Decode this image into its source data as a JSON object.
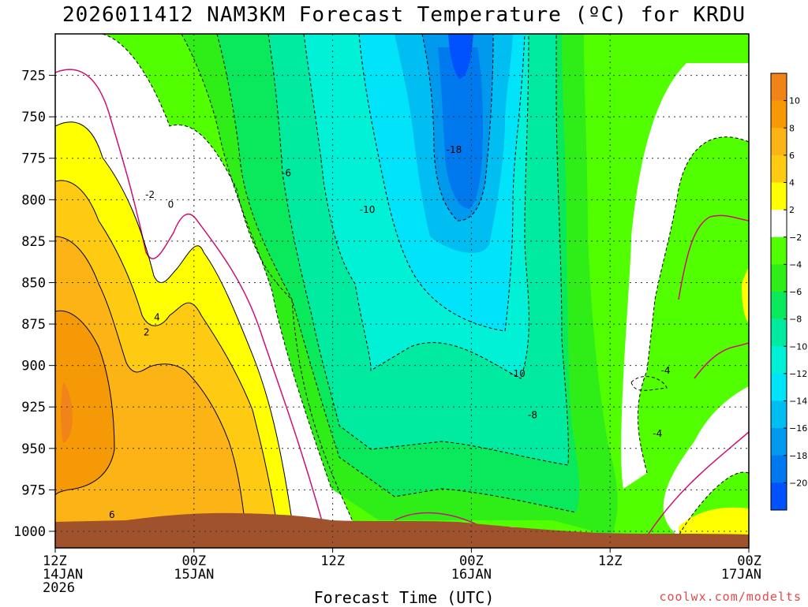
{
  "page": {
    "title": "2026011412 NAM3KM Forecast Temperature (ºC) for KRDU",
    "credit": "coolwx.com/modelts"
  },
  "chart_data": {
    "type": "heatmap",
    "title": "2026011412 NAM3KM Forecast Temperature (ºC) for KRDU",
    "xlabel": "Forecast Time (UTC)",
    "ylabel": "",
    "x_ticks": [
      {
        "hour": 0,
        "lines": [
          "12Z",
          "14JAN",
          "2026"
        ]
      },
      {
        "hour": 12,
        "lines": [
          "00Z",
          "15JAN"
        ]
      },
      {
        "hour": 24,
        "lines": [
          "12Z"
        ]
      },
      {
        "hour": 36,
        "lines": [
          "00Z",
          "16JAN"
        ]
      },
      {
        "hour": 48,
        "lines": [
          "12Z"
        ]
      },
      {
        "hour": 60,
        "lines": [
          "00Z",
          "17JAN"
        ]
      }
    ],
    "xlim": [
      0,
      60
    ],
    "y_ticks": [
      725,
      750,
      775,
      800,
      825,
      850,
      875,
      900,
      925,
      950,
      975,
      1000
    ],
    "ylim": [
      700,
      1010
    ],
    "y_reversed": true,
    "grid": true,
    "colorbar": {
      "placement": "right",
      "ticks": [
        10,
        8,
        6,
        4,
        2,
        -2,
        -4,
        -6,
        -8,
        -10,
        -12,
        -14,
        -16,
        -18,
        -20
      ],
      "bins": [
        {
          "range": [
            10,
            12
          ],
          "color": "#f08418"
        },
        {
          "range": [
            8,
            10
          ],
          "color": "#f59a06"
        },
        {
          "range": [
            6,
            8
          ],
          "color": "#fbb316"
        },
        {
          "range": [
            4,
            6
          ],
          "color": "#ffcb12"
        },
        {
          "range": [
            2,
            4
          ],
          "color": "#ffff00"
        },
        {
          "range": [
            -2,
            2
          ],
          "color": "#ffffff"
        },
        {
          "range": [
            -4,
            -2
          ],
          "color": "#52ff00"
        },
        {
          "range": [
            -6,
            -4
          ],
          "color": "#2fee17"
        },
        {
          "range": [
            -8,
            -6
          ],
          "color": "#0ae95c"
        },
        {
          "range": [
            -10,
            -8
          ],
          "color": "#00eaa0"
        },
        {
          "range": [
            -12,
            -10
          ],
          "color": "#00f1d6"
        },
        {
          "range": [
            -14,
            -12
          ],
          "color": "#00e3f8"
        },
        {
          "range": [
            -16,
            -14
          ],
          "color": "#00bdf2"
        },
        {
          "range": [
            -18,
            -16
          ],
          "color": "#0099ee"
        },
        {
          "range": [
            -20,
            -18
          ],
          "color": "#0079ee"
        },
        {
          "range": [
            -22,
            -20
          ],
          "color": "#0052ff"
        }
      ]
    },
    "contour_labels": [
      {
        "text": "-2",
        "hour": 8.2,
        "p": 797
      },
      {
        "text": "0",
        "hour": 10.0,
        "p": 803
      },
      {
        "text": "-6",
        "hour": 20.0,
        "p": 784
      },
      {
        "text": "-10",
        "hour": 27.0,
        "p": 806
      },
      {
        "text": "-18",
        "hour": 34.5,
        "p": 770
      },
      {
        "text": "2",
        "hour": 7.9,
        "p": 880
      },
      {
        "text": "4",
        "hour": 8.8,
        "p": 871
      },
      {
        "text": "6",
        "hour": 4.9,
        "p": 990
      },
      {
        "text": "-10",
        "hour": 40.0,
        "p": 905
      },
      {
        "text": "-8",
        "hour": 41.3,
        "p": 930
      },
      {
        "text": "-4",
        "hour": 52.8,
        "p": 903
      },
      {
        "text": "-4",
        "hour": 52.1,
        "p": 941
      }
    ],
    "colors": {
      "terrain": "#a0522d",
      "freezing_line": "#cc1177"
    }
  }
}
